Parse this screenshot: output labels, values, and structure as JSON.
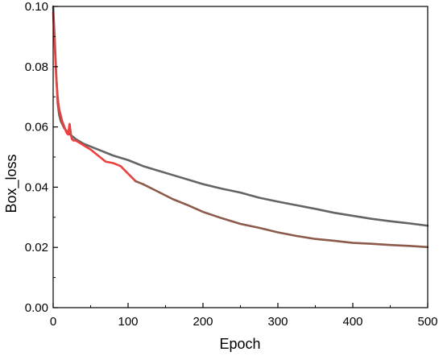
{
  "chart_data": {
    "type": "line",
    "title": "",
    "xlabel": "Epoch",
    "ylabel": "Box_loss",
    "xlim": [
      0,
      500
    ],
    "ylim": [
      0.0,
      0.1
    ],
    "x_ticks": [
      0,
      100,
      200,
      300,
      400,
      500
    ],
    "y_ticks": [
      0.0,
      0.02,
      0.04,
      0.06,
      0.08,
      0.1
    ],
    "x_tick_labels": [
      "0",
      "100",
      "200",
      "300",
      "400",
      "500"
    ],
    "y_tick_labels": [
      "0.00",
      "0.02",
      "0.04",
      "0.06",
      "0.08",
      "0.10"
    ],
    "grid": false,
    "legend": "none",
    "series": [
      {
        "color": "#646464",
        "x": [
          0,
          2,
          4,
          6,
          8,
          10,
          15,
          20,
          25,
          30,
          40,
          50,
          60,
          70,
          80,
          100,
          120,
          140,
          160,
          180,
          200,
          225,
          250,
          275,
          300,
          325,
          350,
          375,
          400,
          425,
          450,
          475,
          500
        ],
        "y": [
          0.1,
          0.09,
          0.078,
          0.068,
          0.064,
          0.062,
          0.0595,
          0.058,
          0.057,
          0.056,
          0.0545,
          0.0535,
          0.0525,
          0.0515,
          0.0505,
          0.049,
          0.047,
          0.0455,
          0.044,
          0.0425,
          0.041,
          0.0395,
          0.0382,
          0.0365,
          0.0352,
          0.034,
          0.0328,
          0.0315,
          0.0305,
          0.0295,
          0.0287,
          0.028,
          0.0272
        ]
      },
      {
        "color": "#ee3e3e",
        "x": [
          0,
          2,
          4,
          6,
          8,
          10,
          12,
          15,
          18,
          20,
          22,
          24,
          25,
          27,
          30,
          40,
          50,
          60,
          70,
          80,
          90,
          100,
          110
        ],
        "y": [
          0.098,
          0.088,
          0.077,
          0.07,
          0.066,
          0.064,
          0.062,
          0.06,
          0.058,
          0.0575,
          0.061,
          0.057,
          0.056,
          0.0555,
          0.0555,
          0.054,
          0.0525,
          0.0505,
          0.0485,
          0.048,
          0.047,
          0.0445,
          0.042
        ]
      },
      {
        "color": "#8b5a4a",
        "x": [
          110,
          120,
          140,
          160,
          180,
          200,
          225,
          250,
          275,
          300,
          325,
          350,
          375,
          400,
          425,
          450,
          475,
          500
        ],
        "y": [
          0.042,
          0.041,
          0.0385,
          0.036,
          0.034,
          0.0318,
          0.0297,
          0.0278,
          0.0265,
          0.025,
          0.0238,
          0.0228,
          0.0222,
          0.0215,
          0.0212,
          0.0208,
          0.0205,
          0.0201
        ]
      }
    ]
  }
}
